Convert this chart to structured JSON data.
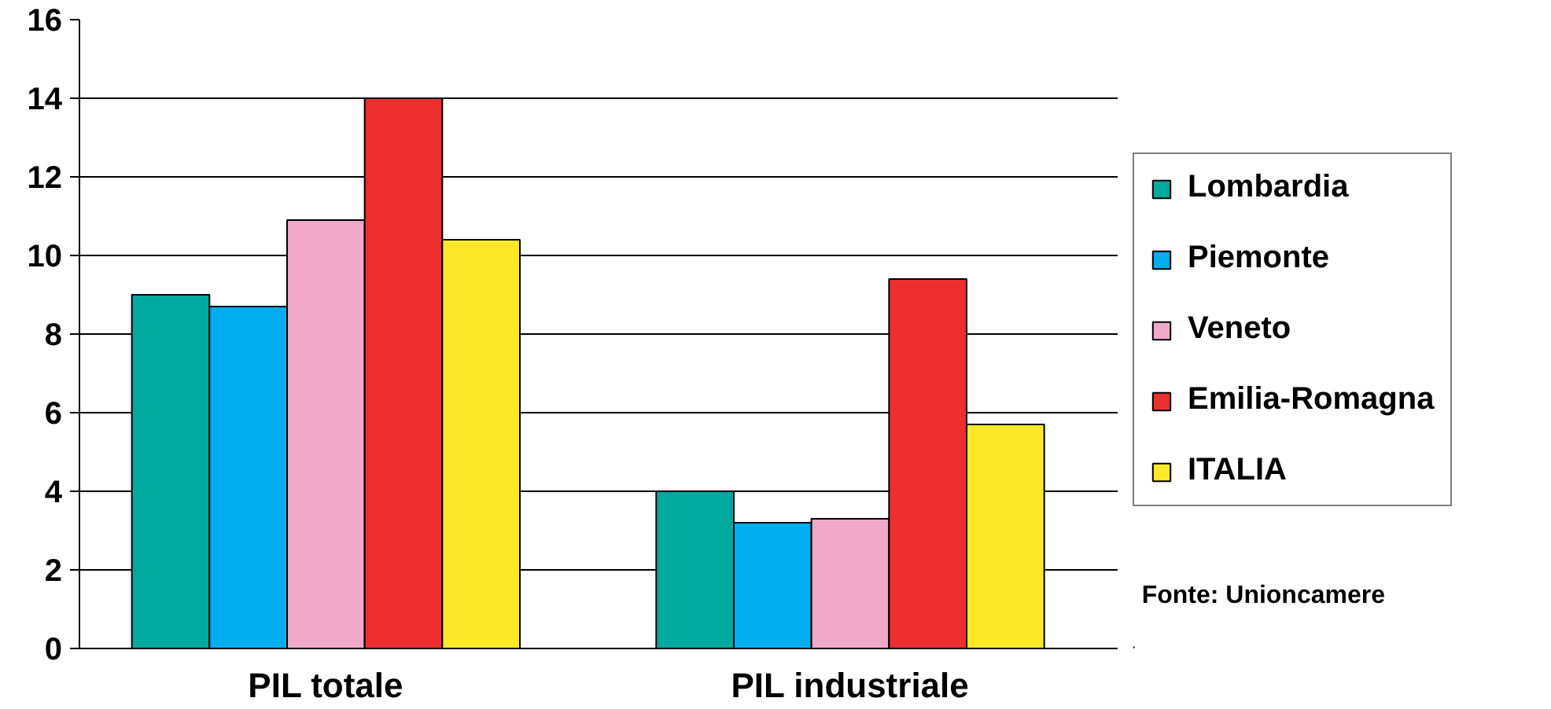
{
  "chart_data": {
    "type": "bar",
    "categories": [
      "PIL totale",
      "PIL industriale"
    ],
    "series": [
      {
        "name": "Lombardia",
        "color": "#00a99d",
        "values": [
          9.0,
          4.0
        ]
      },
      {
        "name": "Piemonte",
        "color": "#00aeef",
        "values": [
          8.7,
          3.2
        ]
      },
      {
        "name": "Veneto",
        "color": "#f0a8c8",
        "values": [
          10.9,
          3.3
        ]
      },
      {
        "name": "Emilia-Romagna",
        "color": "#ed2e2f",
        "values": [
          14.0,
          9.4
        ]
      },
      {
        "name": "ITALIA",
        "color": "#fde92a",
        "values": [
          10.4,
          5.7
        ]
      }
    ],
    "ylim": [
      0,
      16
    ],
    "yticks": [
      0,
      2,
      4,
      6,
      8,
      10,
      12,
      14,
      16
    ],
    "grid": "y",
    "legend": "right",
    "annotations": [
      "Fonte: Unioncamere"
    ]
  }
}
